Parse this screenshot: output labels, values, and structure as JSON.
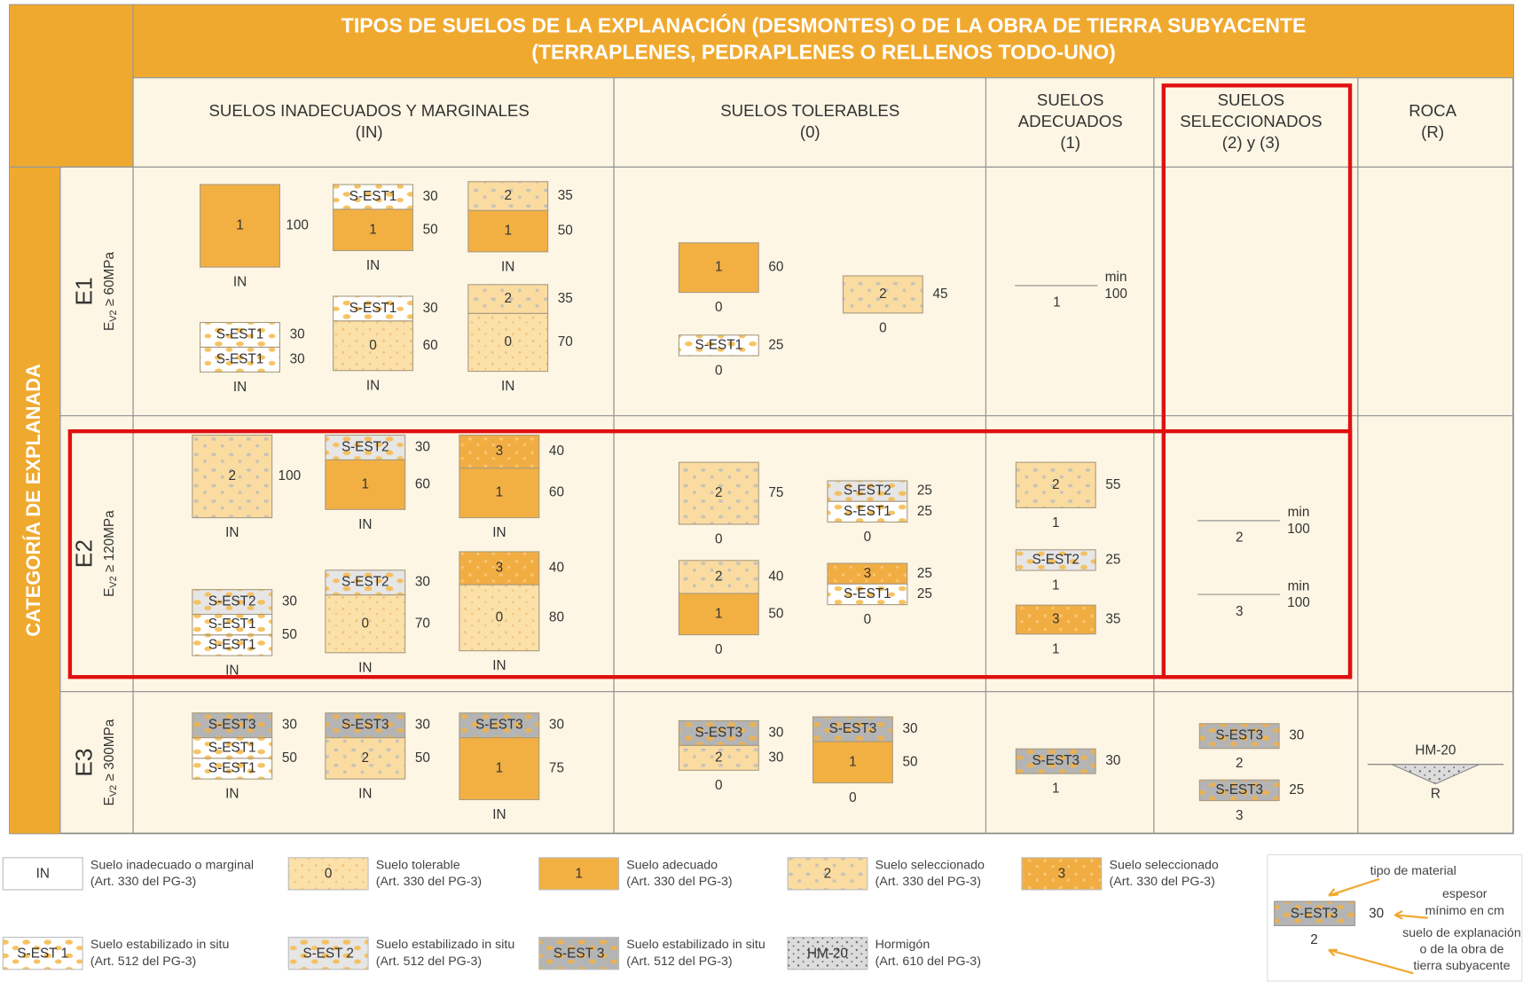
{
  "header": {
    "title": [
      "TIPOS DE  SUELOS DE LA EXPLANACIÓN (DESMONTES) O DE LA OBRA DE TIERRA SUBYACENTE",
      "(TERRAPLENES, PEDRAPLENES O RELLENOS TODO-UNO)"
    ],
    "side": "CATEGORÍA DE EXPLANADA"
  },
  "columns": [
    {
      "lines": [
        "SUELOS INADECUADOS Y MARGINALES",
        "(IN)"
      ]
    },
    {
      "lines": [
        "SUELOS TOLERABLES",
        "(0)"
      ]
    },
    {
      "lines": [
        "SUELOS",
        "ADECUADOS",
        "(1)"
      ]
    },
    {
      "lines": [
        "SUELOS",
        "SELECCIONADOS",
        "(2) y (3)"
      ]
    },
    {
      "lines": [
        "ROCA",
        "(R)"
      ]
    }
  ],
  "rows": [
    {
      "label": "E1",
      "cond": {
        "e": "E",
        "sub": "V2",
        "rest": " ≥ 60MPa"
      },
      "cells": [
        [
          {
            "layers": [
              {
                "label": "1",
                "fill": "a",
                "thickness": 100
              }
            ],
            "base": "IN"
          },
          {
            "layers": [
              {
                "label": "S-EST1",
                "fill": "e1",
                "thickness": 30
              },
              {
                "label": "1",
                "fill": "a",
                "thickness": 50
              }
            ],
            "base": "IN"
          },
          {
            "layers": [
              {
                "label": "2",
                "fill": "s2",
                "thickness": 35
              },
              {
                "label": "1",
                "fill": "a",
                "thickness": 50
              }
            ],
            "base": "IN"
          },
          {
            "layers": [
              {
                "label": "S-EST1",
                "fill": "e1",
                "thickness": 30
              },
              {
                "label": "S-EST1",
                "fill": "e1",
                "thickness": 30
              }
            ],
            "base": "IN"
          },
          {
            "layers": [
              {
                "label": "S-EST1",
                "fill": "e1",
                "thickness": 30
              },
              {
                "label": "0",
                "fill": "t",
                "thickness": 60
              }
            ],
            "base": "IN"
          },
          {
            "layers": [
              {
                "label": "2",
                "fill": "s2",
                "thickness": 35
              },
              {
                "label": "0",
                "fill": "t",
                "thickness": 70
              }
            ],
            "base": "IN"
          }
        ],
        [
          {
            "layers": [
              {
                "label": "1",
                "fill": "a",
                "thickness": 60
              }
            ],
            "base": "0"
          },
          {
            "layers": [
              {
                "label": "S-EST1",
                "fill": "e1",
                "thickness": 25
              }
            ],
            "base": "0"
          },
          {
            "layers": [
              {
                "label": "2",
                "fill": "s2",
                "thickness": 45
              }
            ],
            "base": "0"
          }
        ],
        [
          {
            "min": "min",
            "thickness": 100,
            "base": "1"
          }
        ],
        [],
        []
      ]
    },
    {
      "label": "E2",
      "cond": {
        "e": "E",
        "sub": "V2",
        "rest": " ≥ 120MPa"
      },
      "cells": [
        [
          {
            "layers": [
              {
                "label": "2",
                "fill": "s2",
                "thickness": 100
              }
            ],
            "base": "IN"
          },
          {
            "layers": [
              {
                "label": "S-EST2",
                "fill": "e2",
                "thickness": 30
              },
              {
                "label": "1",
                "fill": "a",
                "thickness": 60
              }
            ],
            "base": "IN"
          },
          {
            "layers": [
              {
                "label": "3",
                "fill": "s3",
                "thickness": 40
              },
              {
                "label": "1",
                "fill": "a",
                "thickness": 60
              }
            ],
            "base": "IN"
          },
          {
            "layers": [
              {
                "label": "S-EST2",
                "fill": "e2",
                "thickness": 30
              },
              {
                "label": "S-EST1",
                "fill": "e1",
                "thickness": 50,
                "blocks": 2
              }
            ],
            "base": "IN"
          },
          {
            "layers": [
              {
                "label": "S-EST2",
                "fill": "e2",
                "thickness": 30
              },
              {
                "label": "0",
                "fill": "t",
                "thickness": 70
              }
            ],
            "base": "IN"
          },
          {
            "layers": [
              {
                "label": "3",
                "fill": "s3",
                "thickness": 40
              },
              {
                "label": "0",
                "fill": "t",
                "thickness": 80
              }
            ],
            "base": "IN"
          }
        ],
        [
          {
            "layers": [
              {
                "label": "2",
                "fill": "s2",
                "thickness": 75
              }
            ],
            "base": "0"
          },
          {
            "layers": [
              {
                "label": "S-EST2",
                "fill": "e2",
                "thickness": 25
              },
              {
                "label": "S-EST1",
                "fill": "e1",
                "thickness": 25
              }
            ],
            "base": "0"
          },
          {
            "layers": [
              {
                "label": "2",
                "fill": "s2",
                "thickness": 40
              },
              {
                "label": "1",
                "fill": "a",
                "thickness": 50
              }
            ],
            "base": "0"
          },
          {
            "layers": [
              {
                "label": "3",
                "fill": "s3",
                "thickness": 25
              },
              {
                "label": "S-EST1",
                "fill": "e1",
                "thickness": 25
              }
            ],
            "base": "0"
          }
        ],
        [
          {
            "layers": [
              {
                "label": "2",
                "fill": "s2",
                "thickness": 55
              }
            ],
            "base": "1"
          },
          {
            "layers": [
              {
                "label": "S-EST2",
                "fill": "e2",
                "thickness": 25
              }
            ],
            "base": "1"
          },
          {
            "layers": [
              {
                "label": "3",
                "fill": "s3",
                "thickness": 35
              }
            ],
            "base": "1"
          }
        ],
        [
          {
            "min": "min",
            "thickness": 100,
            "base": "2"
          },
          {
            "min": "min",
            "thickness": 100,
            "base": "3"
          }
        ],
        []
      ]
    },
    {
      "label": "E3",
      "cond": {
        "e": "E",
        "sub": "V2",
        "rest": " ≥ 300MPa"
      },
      "cells": [
        [
          {
            "layers": [
              {
                "label": "S-EST3",
                "fill": "e3",
                "thickness": 30
              },
              {
                "label": "S-EST1",
                "fill": "e1",
                "thickness": 50,
                "blocks": 2
              }
            ],
            "base": "IN"
          },
          {
            "layers": [
              {
                "label": "S-EST3",
                "fill": "e3",
                "thickness": 30
              },
              {
                "label": "2",
                "fill": "s2",
                "thickness": 50
              }
            ],
            "base": "IN"
          },
          {
            "layers": [
              {
                "label": "S-EST3",
                "fill": "e3",
                "thickness": 30
              },
              {
                "label": "1",
                "fill": "a",
                "thickness": 75
              }
            ],
            "base": "IN"
          }
        ],
        [
          {
            "layers": [
              {
                "label": "S-EST3",
                "fill": "e3",
                "thickness": 30
              },
              {
                "label": "2",
                "fill": "s2",
                "thickness": 30
              }
            ],
            "base": "0"
          },
          {
            "layers": [
              {
                "label": "S-EST3",
                "fill": "e3",
                "thickness": 30
              },
              {
                "label": "1",
                "fill": "a",
                "thickness": 50
              }
            ],
            "base": "0"
          }
        ],
        [
          {
            "layers": [
              {
                "label": "S-EST3",
                "fill": "e3",
                "thickness": 30
              }
            ],
            "base": "1"
          }
        ],
        [
          {
            "layers": [
              {
                "label": "S-EST3",
                "fill": "e3",
                "thickness": 30
              }
            ],
            "base": "2"
          },
          {
            "layers": [
              {
                "label": "S-EST3",
                "fill": "e3",
                "thickness": 25
              }
            ],
            "base": "3"
          }
        ],
        [
          {
            "rock": "HM-20",
            "base": "R"
          }
        ]
      ]
    }
  ],
  "legend": [
    {
      "box": "IN",
      "fill": "in",
      "lines": [
        "Suelo inadecuado o marginal",
        "(Art. 330 del PG-3)"
      ]
    },
    {
      "box": "0",
      "fill": "t",
      "lines": [
        "Suelo tolerable",
        "(Art. 330 del PG-3)"
      ]
    },
    {
      "box": "1",
      "fill": "a",
      "lines": [
        "Suelo adecuado",
        "(Art. 330 del PG-3)"
      ]
    },
    {
      "box": "2",
      "fill": "s2",
      "lines": [
        "Suelo seleccionado",
        "(Art. 330 del PG-3)"
      ]
    },
    {
      "box": "3",
      "fill": "s3",
      "lines": [
        "Suelo seleccionado",
        "(Art. 330 del PG-3)"
      ]
    },
    {
      "box": "S-EST 1",
      "fill": "e1",
      "lines": [
        "Suelo estabilizado in situ",
        "(Art. 512 del PG-3)"
      ]
    },
    {
      "box": "S-EST 2",
      "fill": "e2",
      "lines": [
        "Suelo estabilizado in situ",
        "(Art. 512 del PG-3)"
      ]
    },
    {
      "box": "S-EST 3",
      "fill": "e3",
      "lines": [
        "Suelo estabilizado in situ",
        "(Art. 512 del PG-3)"
      ]
    },
    {
      "box": "HM-20",
      "fill": "hm",
      "lines": [
        "Hormigón",
        "(Art. 610 del PG-3)"
      ]
    }
  ],
  "key": {
    "material": "tipo de material",
    "box": "S-EST3",
    "thickness": 30,
    "thickness_note": [
      "espesor",
      "mínimo en cm"
    ],
    "base": "2",
    "base_note": [
      "suelo de explanación",
      "o de la obra de",
      "tierra subyacente"
    ]
  }
}
